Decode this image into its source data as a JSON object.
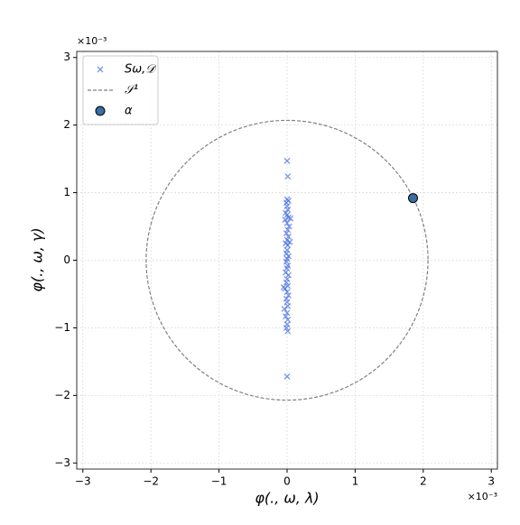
{
  "chart_data": {
    "type": "scatter",
    "x_label": "φ(., ω, λ)",
    "y_label": "φ(., ω, γ)",
    "x_offset_text": "×10⁻³",
    "y_offset_text": "×10⁻³",
    "xlim": [
      -3.09,
      3.09
    ],
    "ylim": [
      -3.09,
      3.09
    ],
    "xticks": [
      {
        "value": -3,
        "label": "−3"
      },
      {
        "value": -2,
        "label": "−2"
      },
      {
        "value": -1,
        "label": "−1"
      },
      0,
      1,
      2,
      3
    ],
    "yticks": [
      {
        "value": -3,
        "label": "−3"
      },
      {
        "value": -2,
        "label": "−2"
      },
      {
        "value": -1,
        "label": "−1"
      },
      0,
      1,
      2,
      3
    ],
    "grid": true,
    "legend": "upper left",
    "series": [
      {
        "name": "Sω,𝒟",
        "kind": "points",
        "marker": "x",
        "color": "#4169e1",
        "x": [
          0,
          0.01,
          0,
          0.02,
          -0.01,
          0,
          0.01,
          -0.02,
          0,
          0.02,
          0.05,
          -0.03,
          0,
          0.03,
          0.01,
          -0.01,
          0.02,
          0,
          -0.02,
          0.01,
          0,
          -0.01,
          0.02,
          0,
          -0.01,
          0.01,
          0,
          -0.02,
          0.02,
          0,
          -0.01,
          0.01,
          -0.03,
          0,
          0.02,
          -0.01,
          0,
          0.01,
          -0.04,
          0,
          -0.02,
          0.01,
          0,
          -0.01,
          0.01,
          0,
          0.04,
          -0.05
        ],
        "values": [
          1.47,
          1.24,
          0.9,
          0.88,
          0.85,
          0.8,
          0.75,
          0.7,
          0.67,
          0.63,
          0.62,
          0.6,
          0.55,
          0.5,
          0.45,
          0.4,
          0.35,
          0.3,
          0.25,
          0.22,
          0.15,
          0.1,
          0.06,
          0.02,
          -0.02,
          -0.08,
          -0.12,
          -0.18,
          -0.22,
          -0.28,
          -0.33,
          -0.38,
          -0.42,
          -0.47,
          -0.52,
          -0.57,
          -0.62,
          -0.68,
          -0.72,
          -0.78,
          -0.83,
          -0.88,
          -0.95,
          -1.0,
          -1.05,
          -1.72,
          0.27,
          -0.4
        ]
      },
      {
        "name": "𝒮¹",
        "kind": "circle",
        "linestyle": "dashed",
        "color": "#808080",
        "center": [
          0,
          0
        ],
        "radius": 2.07
      },
      {
        "name": "α",
        "kind": "points",
        "marker": "o",
        "color": "#3a6ea5",
        "x": [
          1.85
        ],
        "values": [
          0.92
        ]
      }
    ]
  }
}
